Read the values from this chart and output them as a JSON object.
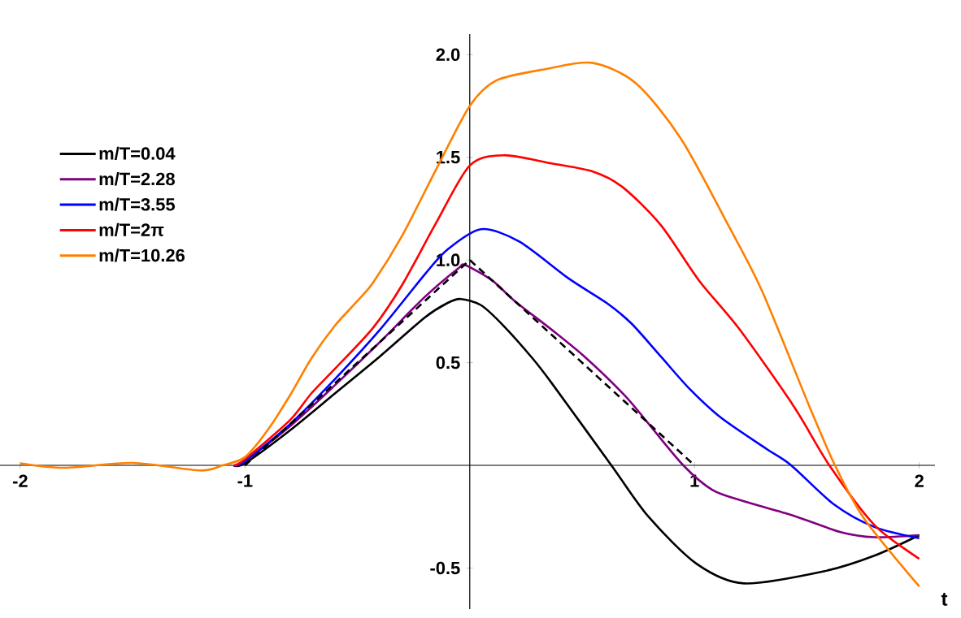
{
  "chart_data": {
    "type": "line",
    "xlabel": "t",
    "xlim": [
      -2.09,
      2.07
    ],
    "ylim": [
      -0.7,
      2.1
    ],
    "xticks": [
      -2,
      -1,
      1,
      2
    ],
    "yticks": [
      -0.5,
      0.5,
      {
        "value": 1.0,
        "label": "1.0"
      },
      1.5,
      {
        "value": 2.0,
        "label": "2.0"
      }
    ],
    "legend": "top left",
    "grid": false,
    "marker": "none",
    "series": [
      {
        "name": "m/T=0.04",
        "color": "#000000",
        "x": [
          -1.05,
          -1,
          -0.8,
          -0.6,
          -0.4,
          -0.2,
          -0.1,
          -0.04,
          0.05,
          0.15,
          0.28,
          0.365,
          0.63,
          0.795,
          1.01,
          1.22,
          1.58,
          1.8,
          2.0
        ],
        "values": [
          0,
          0.01,
          0.17,
          0.35,
          0.53,
          0.72,
          0.79,
          0.81,
          0.78,
          0.68,
          0.52,
          0.4,
          0,
          -0.25,
          -0.48,
          -0.575,
          -0.515,
          -0.44,
          -0.34
        ]
      },
      {
        "name": "m/T=2.28",
        "color": "#800080",
        "x": [
          -1.05,
          -1,
          -0.8,
          -0.6,
          -0.4,
          -0.2,
          -0.05,
          -0.02,
          0.1,
          0.2,
          0.365,
          0.51,
          0.69,
          0.79,
          0.95,
          1.08,
          1.22,
          1.44,
          1.65,
          1.8,
          2.0
        ],
        "values": [
          0,
          0.02,
          0.19,
          0.39,
          0.6,
          0.82,
          0.96,
          0.975,
          0.9,
          0.8,
          0.66,
          0.53,
          0.34,
          0.21,
          0,
          -0.12,
          -0.175,
          -0.245,
          -0.325,
          -0.35,
          -0.34
        ]
      },
      {
        "name": "m/T=3.55",
        "color": "#0000ff",
        "x": [
          -1.05,
          -1,
          -0.8,
          -0.6,
          -0.4,
          -0.2,
          -0.1,
          0.05,
          0.22,
          0.44,
          0.61,
          0.72,
          0.85,
          0.98,
          1.12,
          1.32,
          1.43,
          1.62,
          1.8,
          2.0
        ],
        "values": [
          0,
          0.02,
          0.2,
          0.42,
          0.66,
          0.93,
          1.05,
          1.15,
          1.09,
          0.91,
          0.79,
          0.69,
          0.53,
          0.37,
          0.23,
          0.08,
          0,
          -0.19,
          -0.3,
          -0.355
        ]
      },
      {
        "name": "m/T=2π",
        "color": "#ff0000",
        "x": [
          -1.05,
          -1,
          -0.8,
          -0.705,
          -0.6,
          -0.43,
          -0.3,
          -0.15,
          0,
          0.15,
          0.365,
          0.55,
          0.68,
          0.85,
          1.02,
          1.195,
          1.44,
          1.6,
          1.8,
          2.0
        ],
        "values": [
          0,
          0.03,
          0.22,
          0.35,
          0.47,
          0.67,
          0.88,
          1.18,
          1.46,
          1.51,
          1.47,
          1.43,
          1.355,
          1.17,
          0.9,
          0.67,
          0.29,
          0,
          -0.29,
          -0.455
        ]
      },
      {
        "name": "m/T=10.26",
        "color": "#ff8000",
        "x": [
          -2,
          -1.8,
          -1.5,
          -1.2,
          -1.1,
          -1,
          -0.9,
          -0.8,
          -0.705,
          -0.6,
          -0.5,
          -0.43,
          -0.3,
          -0.15,
          0,
          0.12,
          0.34,
          0.545,
          0.74,
          0.94,
          1.15,
          1.3,
          1.51,
          1.625,
          1.755,
          2.0
        ],
        "values": [
          0.01,
          -0.012,
          0.012,
          -0.025,
          0,
          0.04,
          0.17,
          0.34,
          0.52,
          0.68,
          0.8,
          0.89,
          1.12,
          1.44,
          1.75,
          1.875,
          1.93,
          1.96,
          1.86,
          1.59,
          1.17,
          0.85,
          0.29,
          0,
          -0.26,
          -0.59
        ]
      },
      {
        "color": "#000000",
        "line_style": "dashed",
        "x": [
          -1,
          0,
          1
        ],
        "values": [
          0,
          1,
          0
        ]
      }
    ]
  }
}
